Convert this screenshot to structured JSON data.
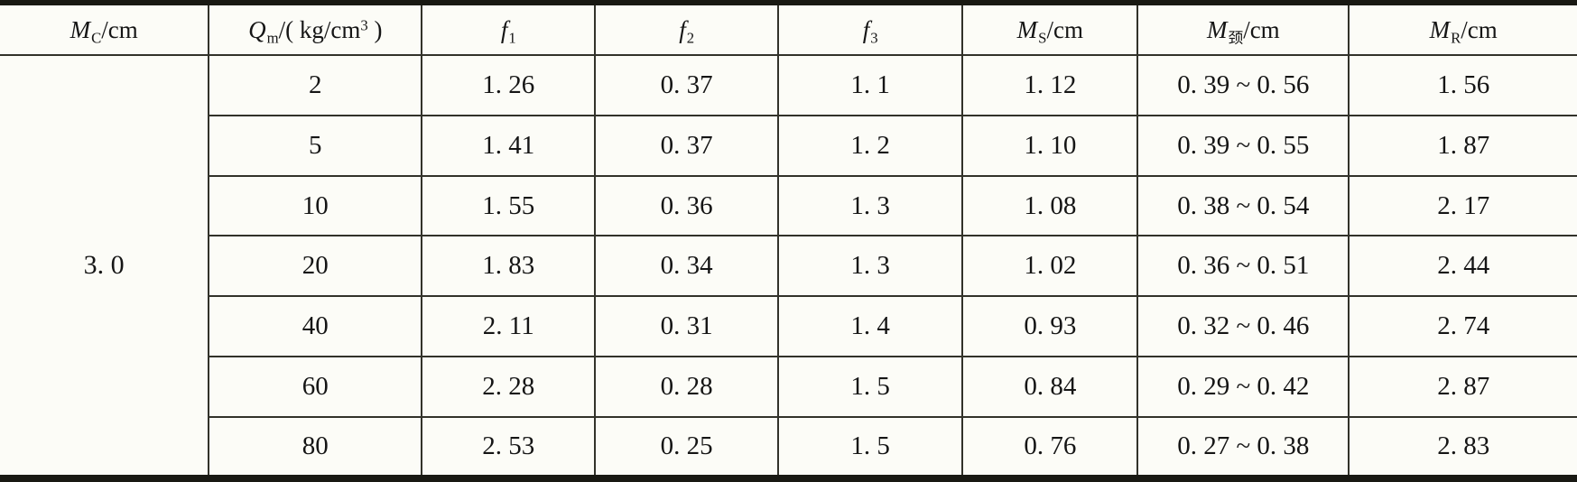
{
  "table": {
    "columns": [
      {
        "base": "M",
        "sub": "C",
        "mid": "/cm",
        "sup": "",
        "tail": ""
      },
      {
        "base": "Q",
        "sub": "m",
        "mid": "/( kg/cm",
        "sup": "3",
        "tail": " )"
      },
      {
        "base": "f",
        "sub": "1",
        "mid": "",
        "sup": "",
        "tail": ""
      },
      {
        "base": "f",
        "sub": "2",
        "mid": "",
        "sup": "",
        "tail": ""
      },
      {
        "base": "f",
        "sub": "3",
        "mid": "",
        "sup": "",
        "tail": ""
      },
      {
        "base": "M",
        "sub": "S",
        "mid": "/cm",
        "sup": "",
        "tail": ""
      },
      {
        "base": "M",
        "sub": "颈",
        "mid": "/cm",
        "sup": "",
        "tail": ""
      },
      {
        "base": "M",
        "sub": "R",
        "mid": "/cm",
        "sup": "",
        "tail": ""
      }
    ],
    "merged_mc_value": "3. 0",
    "rows": [
      {
        "qm": "2",
        "f1": "1. 26",
        "f2": "0. 37",
        "f3": "1. 1",
        "ms": "1. 12",
        "mjing": "0. 39 ~ 0. 56",
        "mr": "1. 56"
      },
      {
        "qm": "5",
        "f1": "1. 41",
        "f2": "0. 37",
        "f3": "1. 2",
        "ms": "1. 10",
        "mjing": "0. 39 ~ 0. 55",
        "mr": "1. 87"
      },
      {
        "qm": "10",
        "f1": "1. 55",
        "f2": "0. 36",
        "f3": "1. 3",
        "ms": "1. 08",
        "mjing": "0. 38 ~ 0. 54",
        "mr": "2. 17"
      },
      {
        "qm": "20",
        "f1": "1. 83",
        "f2": "0. 34",
        "f3": "1. 3",
        "ms": "1. 02",
        "mjing": "0. 36 ~ 0. 51",
        "mr": "2. 44"
      },
      {
        "qm": "40",
        "f1": "2. 11",
        "f2": "0. 31",
        "f3": "1. 4",
        "ms": "0. 93",
        "mjing": "0. 32 ~ 0. 46",
        "mr": "2. 74"
      },
      {
        "qm": "60",
        "f1": "2. 28",
        "f2": "0. 28",
        "f3": "1. 5",
        "ms": "0. 84",
        "mjing": "0. 29 ~ 0. 42",
        "mr": "2. 87"
      },
      {
        "qm": "80",
        "f1": "2. 53",
        "f2": "0. 25",
        "f3": "1. 5",
        "ms": "0. 76",
        "mjing": "0. 27 ~ 0. 38",
        "mr": "2. 83"
      }
    ],
    "colors": {
      "background": "#fcfcf7",
      "line_thin": "#32322a",
      "line_thick": "#191913",
      "text": "#151515"
    }
  },
  "chart_data": {
    "type": "table",
    "title": "",
    "categories": [
      "M_C/cm",
      "Q_m/(kg/cm3)",
      "f_1",
      "f_2",
      "f_3",
      "M_S/cm",
      "M_颈/cm",
      "M_R/cm"
    ],
    "series": [
      {
        "name": "M_C/cm",
        "values": [
          "3.0",
          "3.0",
          "3.0",
          "3.0",
          "3.0",
          "3.0",
          "3.0"
        ]
      },
      {
        "name": "Q_m/(kg/cm3)",
        "values": [
          2,
          5,
          10,
          20,
          40,
          60,
          80
        ]
      },
      {
        "name": "f_1",
        "values": [
          1.26,
          1.41,
          1.55,
          1.83,
          2.11,
          2.28,
          2.53
        ]
      },
      {
        "name": "f_2",
        "values": [
          0.37,
          0.37,
          0.36,
          0.34,
          0.31,
          0.28,
          0.25
        ]
      },
      {
        "name": "f_3",
        "values": [
          1.1,
          1.2,
          1.3,
          1.3,
          1.4,
          1.5,
          1.5
        ]
      },
      {
        "name": "M_S/cm",
        "values": [
          1.12,
          1.1,
          1.08,
          1.02,
          0.93,
          0.84,
          0.76
        ]
      },
      {
        "name": "M_颈/cm",
        "values": [
          "0.39~0.56",
          "0.39~0.55",
          "0.38~0.54",
          "0.36~0.51",
          "0.32~0.46",
          "0.29~0.42",
          "0.27~0.38"
        ]
      },
      {
        "name": "M_R/cm",
        "values": [
          1.56,
          1.87,
          2.17,
          2.44,
          2.74,
          2.87,
          2.83
        ]
      }
    ]
  }
}
